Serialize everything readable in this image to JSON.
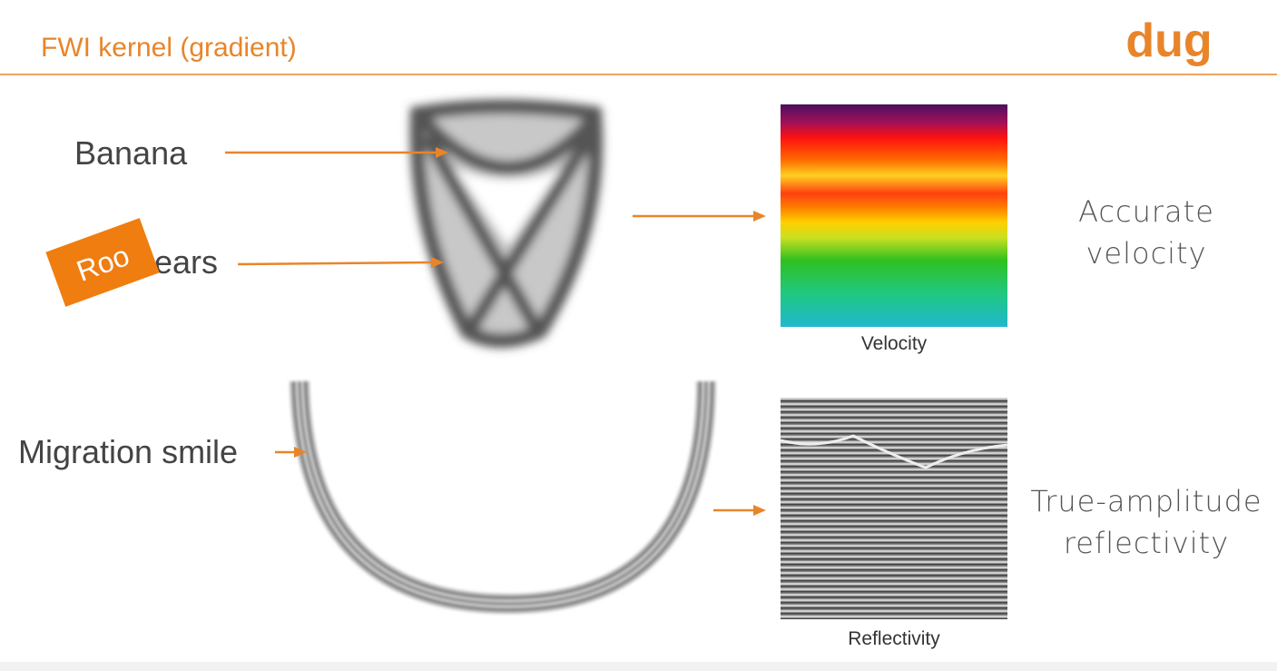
{
  "header": {
    "title": "FWI kernel (gradient)",
    "logo": "dug"
  },
  "labels": {
    "banana": "Banana",
    "sticker": "Roo",
    "ears": "ears",
    "smile": "Migration smile"
  },
  "panels": [
    {
      "caption": "Velocity",
      "result": [
        "Accurate",
        "velocity"
      ]
    },
    {
      "caption": "Reflectivity",
      "result": [
        "True-amplitude",
        "reflectivity"
      ]
    }
  ]
}
